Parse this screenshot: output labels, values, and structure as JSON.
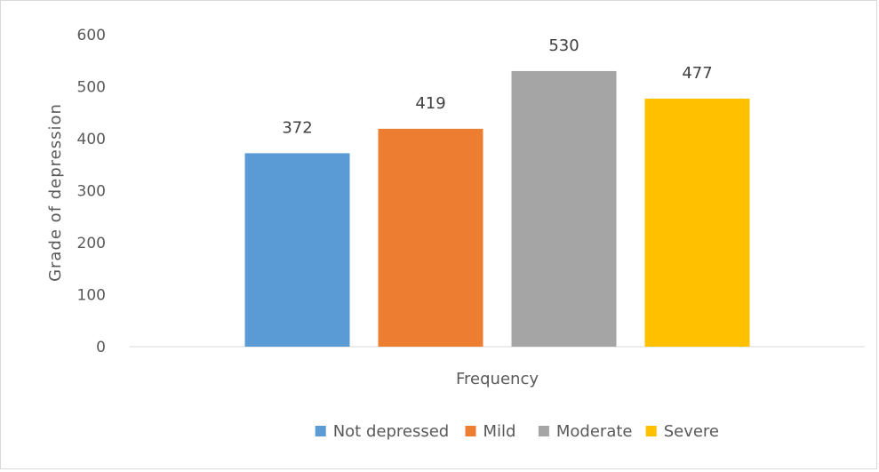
{
  "chart_data": {
    "type": "bar",
    "categories": [
      "Frequency"
    ],
    "series": [
      {
        "name": "Not depressed",
        "values": [
          372
        ],
        "color": "#5b9bd5"
      },
      {
        "name": "Mild",
        "values": [
          419
        ],
        "color": "#ed7d31"
      },
      {
        "name": "Moderate",
        "values": [
          530
        ],
        "color": "#a5a5a5"
      },
      {
        "name": "Severe",
        "values": [
          477
        ],
        "color": "#ffc000"
      }
    ],
    "xlabel": "Frequency",
    "ylabel": "Grade of depression",
    "ylim": [
      0,
      600
    ],
    "yticks": [
      0,
      100,
      200,
      300,
      400,
      500,
      600
    ],
    "grid": false,
    "legend": "bottom",
    "data_labels": true
  }
}
